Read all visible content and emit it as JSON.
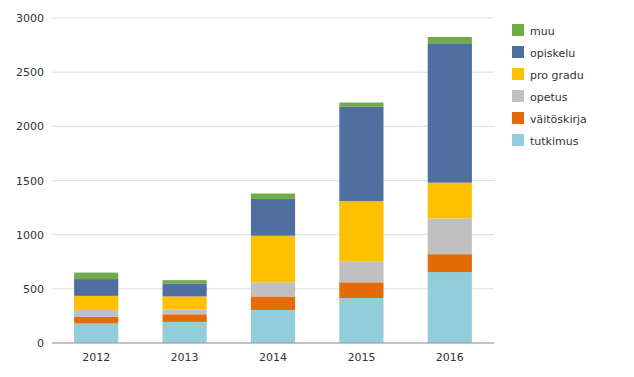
{
  "chart_data": {
    "type": "bar",
    "stacked": true,
    "categories": [
      "2012",
      "2013",
      "2014",
      "2015",
      "2016"
    ],
    "series": [
      {
        "name": "tutkimus",
        "color": "#92CDDC",
        "values": [
          180,
          195,
          305,
          415,
          655
        ]
      },
      {
        "name": "väitöskirja",
        "color": "#E36C09",
        "values": [
          60,
          70,
          125,
          145,
          165
        ]
      },
      {
        "name": "opetus",
        "color": "#C0C0C0",
        "values": [
          65,
          45,
          130,
          195,
          330
        ]
      },
      {
        "name": "pro gradu",
        "color": "#FFC000",
        "values": [
          130,
          120,
          430,
          555,
          330
        ]
      },
      {
        "name": "opiskelu",
        "color": "#4F6FA0",
        "values": [
          155,
          120,
          340,
          870,
          1280
        ]
      },
      {
        "name": "muu",
        "color": "#70AD47",
        "values": [
          60,
          30,
          50,
          40,
          65
        ]
      }
    ],
    "ylim": [
      0,
      3000
    ],
    "yticks": [
      0,
      500,
      1000,
      1500,
      2000,
      2500,
      3000
    ],
    "grid": true,
    "legend": "right"
  }
}
